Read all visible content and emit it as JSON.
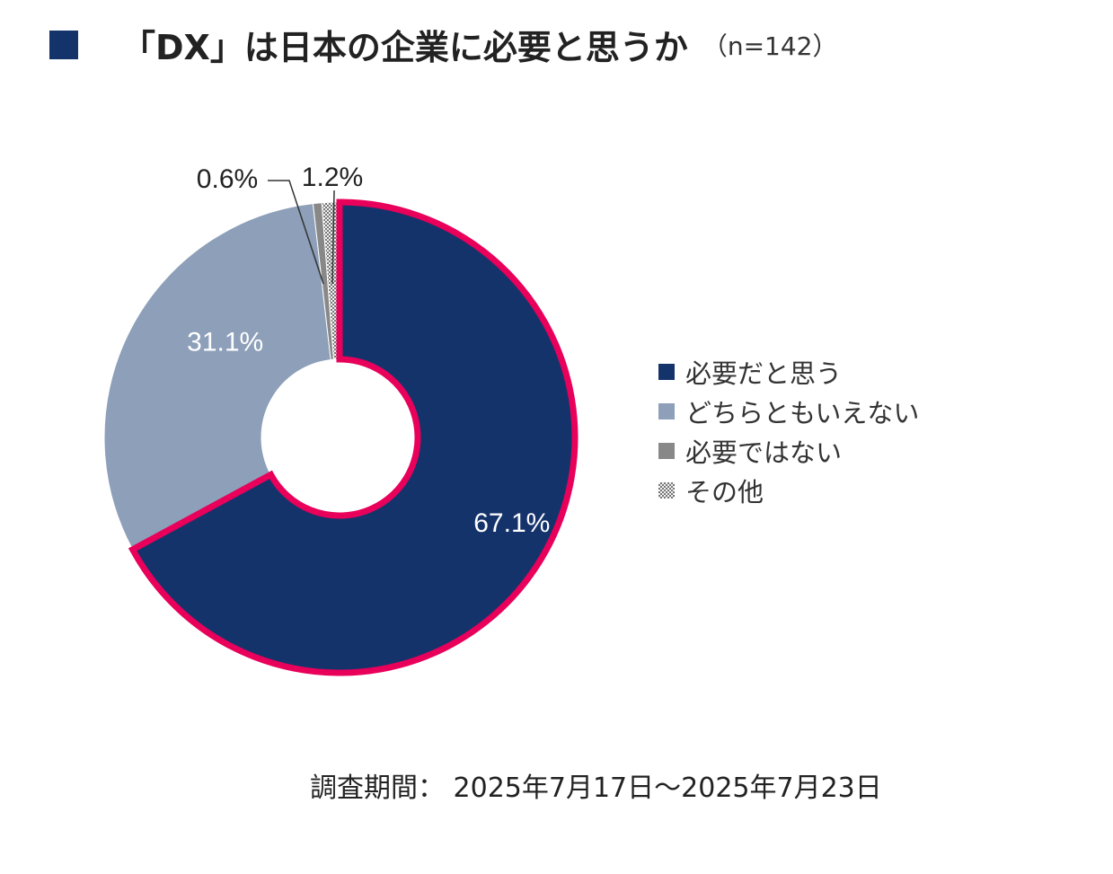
{
  "title": {
    "main": "「DX」は日本の企業に必要と思うか",
    "sample": "（n=142）"
  },
  "colors": {
    "title_square": "#15336b",
    "highlight_border": "#e8005a"
  },
  "chart_data": {
    "type": "pie",
    "style": "donut",
    "start_angle_deg": 0,
    "direction": "clockwise",
    "categories": [
      "必要だと思う",
      "どちらともいえない",
      "必要ではない",
      "その他"
    ],
    "values": [
      67.1,
      31.1,
      0.6,
      1.2
    ],
    "labels": [
      "67.1%",
      "31.1%",
      "0.6%",
      "1.2%"
    ],
    "colors": [
      "#15336b",
      "#8d9fb9",
      "#888888",
      "#c8c8c8"
    ],
    "patterns": [
      "solid",
      "solid",
      "solid",
      "checkered"
    ],
    "highlighted_category": "必要だと思う",
    "legend_position": "right"
  },
  "footer": {
    "survey_period": "調査期間： 2025年7月17日～2025年7月23日"
  }
}
